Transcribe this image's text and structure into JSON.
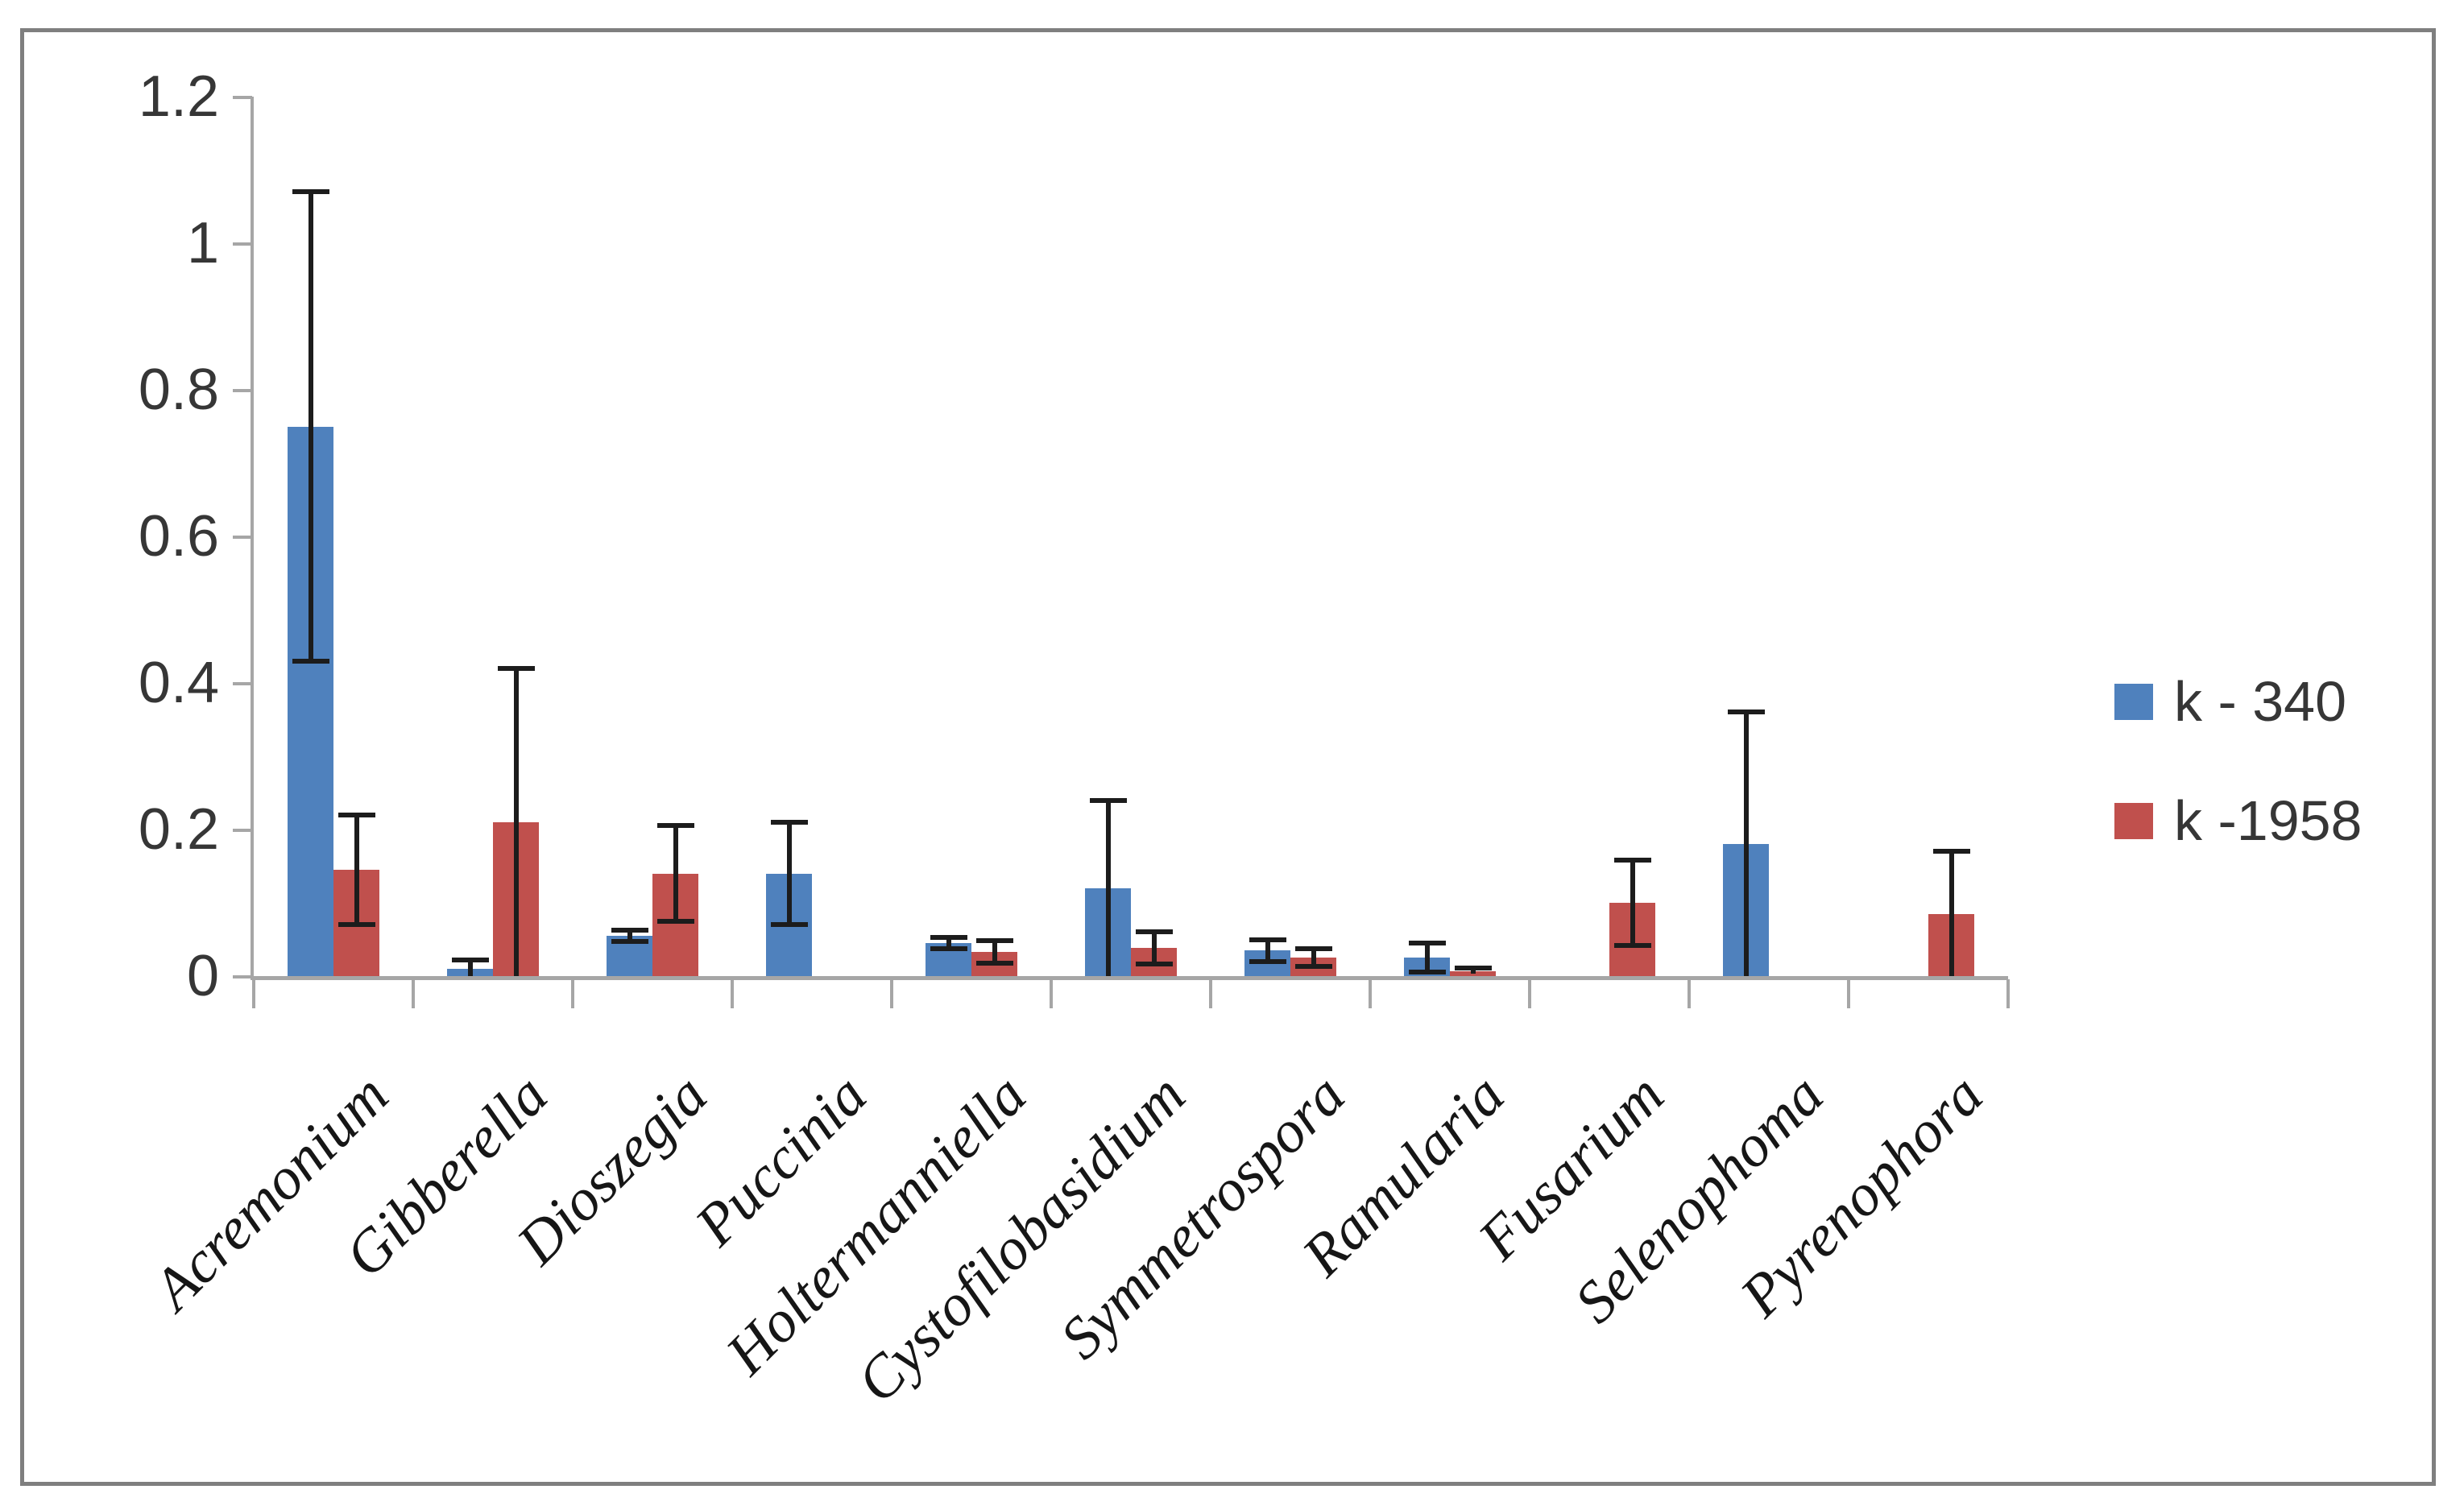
{
  "chart_data": {
    "type": "bar",
    "title": "",
    "xlabel": "",
    "ylabel": "",
    "categories": [
      "Acremonium",
      "Gibberella",
      "Dioszegia",
      "Puccinia",
      "Holtermanniella",
      "Cystofilobasidium",
      "Symmetrospora",
      "Ramularia",
      "Fusarium",
      "Selenophoma",
      "Pyrenophora"
    ],
    "series": [
      {
        "name": "k - 340",
        "color": "#4F81BD",
        "values": [
          0.75,
          0.01,
          0.055,
          0.14,
          0.045,
          0.12,
          0.035,
          0.025,
          0,
          0.18,
          0
        ],
        "errors": [
          0.32,
          0.012,
          0.008,
          0.07,
          0.008,
          0.12,
          0.015,
          0.02,
          0,
          0.18,
          0
        ]
      },
      {
        "name": "k -1958",
        "color": "#C0504D",
        "values": [
          0.145,
          0.21,
          0.14,
          0,
          0.033,
          0.038,
          0.025,
          0.007,
          0.1,
          0,
          0.085
        ],
        "errors": [
          0.075,
          0.21,
          0.065,
          0,
          0.015,
          0.022,
          0.012,
          0.004,
          0.058,
          0,
          0.085
        ]
      }
    ],
    "ylim": [
      0,
      1.2
    ],
    "ytick_labels": [
      "0",
      "0.2",
      "0.4",
      "0.6",
      "0.8",
      "1",
      "1.2"
    ],
    "ytick_values": [
      0,
      0.2,
      0.4,
      0.6,
      0.8,
      1.0,
      1.2
    ],
    "grid": false,
    "error_bars": true,
    "legend_position": "right",
    "category_label_rotation_deg": -45
  },
  "legend": {
    "items": [
      {
        "label": "k - 340",
        "color": "#4F81BD"
      },
      {
        "label": "k -1958",
        "color": "#C0504D"
      }
    ]
  },
  "colors": {
    "axis": "#a6a6a6",
    "frame_border": "#7f7f7f",
    "error_bar": "#1c1c1c",
    "background": "#ffffff",
    "tick_label": "#363636"
  }
}
